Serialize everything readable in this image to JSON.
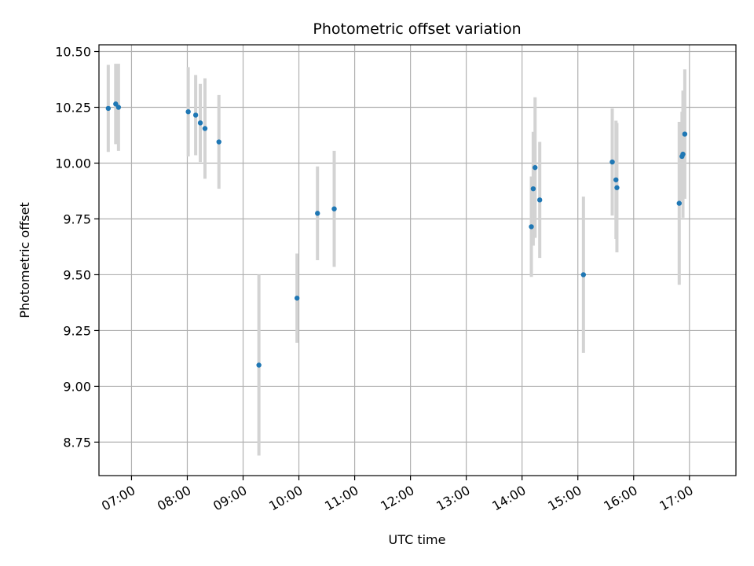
{
  "chart_data": {
    "type": "scatter",
    "title": "Photometric offset variation",
    "xlabel": "UTC time",
    "ylabel": "Photometric offset",
    "xlim": [
      "06:25",
      "17:50"
    ],
    "ylim": [
      8.6,
      10.53
    ],
    "grid": true,
    "x_ticks": [
      "07:00",
      "08:00",
      "09:00",
      "10:00",
      "11:00",
      "12:00",
      "13:00",
      "14:00",
      "15:00",
      "16:00",
      "17:00"
    ],
    "y_ticks": [
      8.75,
      9.0,
      9.25,
      9.5,
      9.75,
      10.0,
      10.25,
      10.5
    ],
    "y_tick_labels": [
      "8.75",
      "9.00",
      "9.25",
      "9.50",
      "9.75",
      "10.00",
      "10.25",
      "10.50"
    ],
    "point_color": "#1f77b4",
    "errorbar_color": "#d3d3d3",
    "points": [
      {
        "time": "06:35",
        "y": 10.245,
        "err": 0.195
      },
      {
        "time": "06:43",
        "y": 10.265,
        "err": 0.18
      },
      {
        "time": "06:46",
        "y": 10.25,
        "err": 0.195
      },
      {
        "time": "08:01",
        "y": 10.23,
        "err": 0.2
      },
      {
        "time": "08:09",
        "y": 10.215,
        "err": 0.18
      },
      {
        "time": "08:14",
        "y": 10.18,
        "err": 0.175
      },
      {
        "time": "08:19",
        "y": 10.155,
        "err": 0.225
      },
      {
        "time": "08:34",
        "y": 10.095,
        "err": 0.21
      },
      {
        "time": "09:17",
        "y": 9.095,
        "err": 0.405
      },
      {
        "time": "09:58",
        "y": 9.395,
        "err": 0.2
      },
      {
        "time": "10:20",
        "y": 9.775,
        "err": 0.21
      },
      {
        "time": "10:38",
        "y": 9.795,
        "err": 0.26
      },
      {
        "time": "14:10",
        "y": 9.715,
        "err": 0.225
      },
      {
        "time": "14:12",
        "y": 9.885,
        "err": 0.255
      },
      {
        "time": "14:14",
        "y": 9.98,
        "err": 0.315
      },
      {
        "time": "14:19",
        "y": 9.835,
        "err": 0.26
      },
      {
        "time": "15:06",
        "y": 9.5,
        "err": 0.35
      },
      {
        "time": "15:37",
        "y": 10.005,
        "err": 0.24
      },
      {
        "time": "15:41",
        "y": 9.925,
        "err": 0.265
      },
      {
        "time": "15:42",
        "y": 9.89,
        "err": 0.29
      },
      {
        "time": "16:49",
        "y": 9.82,
        "err": 0.365
      },
      {
        "time": "16:52",
        "y": 10.03,
        "err": 0.2
      },
      {
        "time": "16:53",
        "y": 10.04,
        "err": 0.285
      },
      {
        "time": "16:55",
        "y": 10.13,
        "err": 0.29
      }
    ]
  }
}
